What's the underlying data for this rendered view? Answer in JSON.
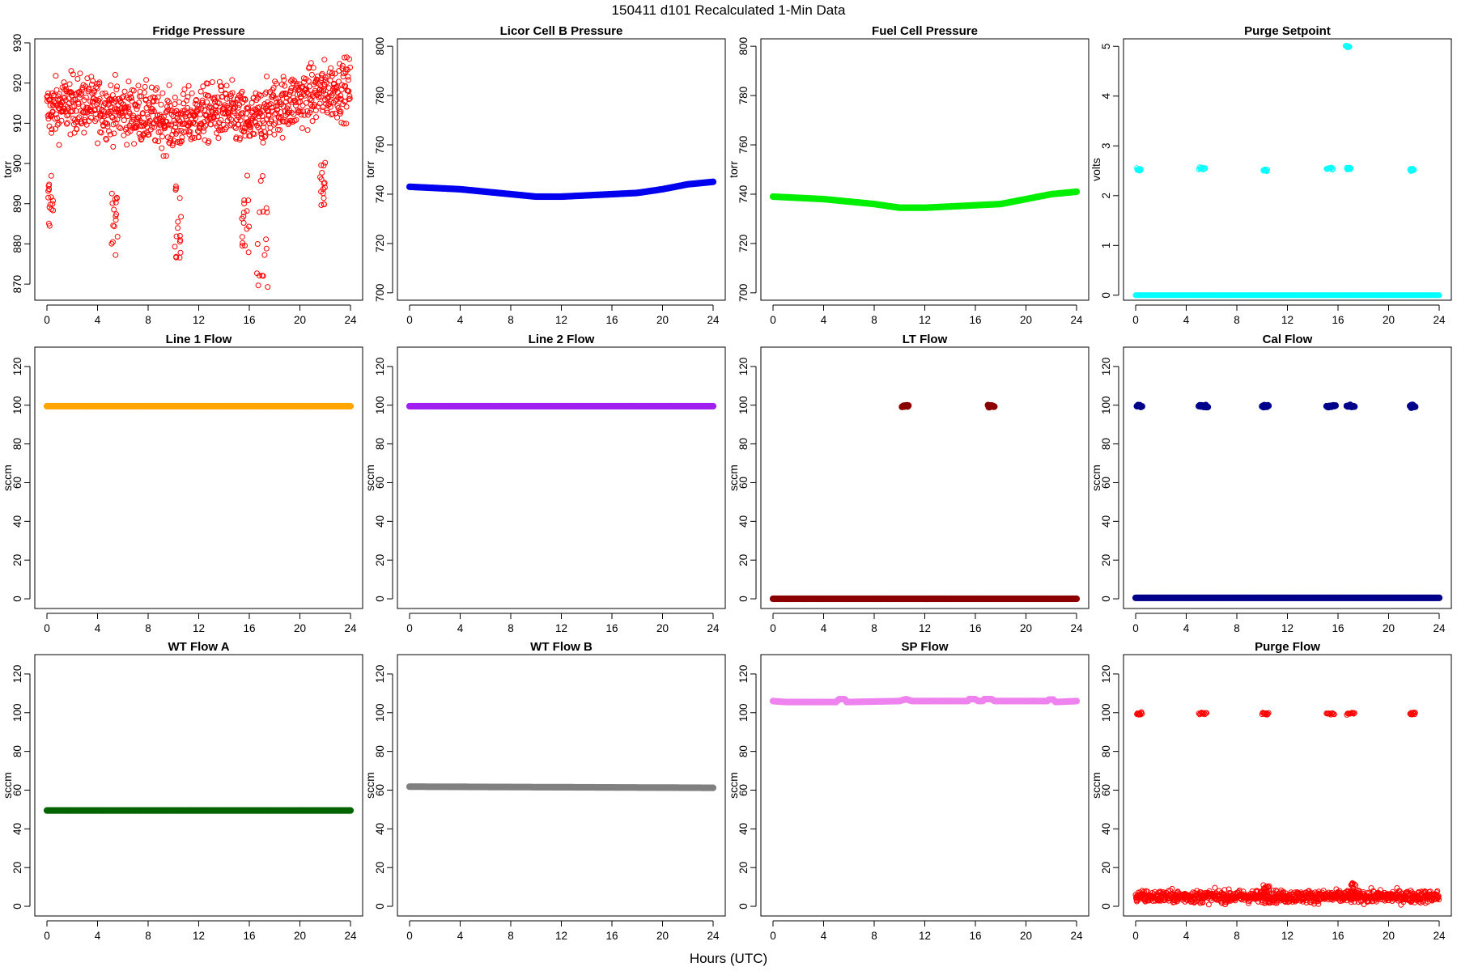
{
  "figure": {
    "title": "150411   d101   Recalculated 1-Min Data",
    "xlabel": "Hours (UTC)"
  },
  "chart_data": [
    {
      "type": "scatter",
      "title": "Fridge Pressure",
      "xlabel": "",
      "ylabel": "torr",
      "xlim": [
        0,
        24
      ],
      "ylim": [
        866,
        931
      ],
      "xticks": [
        0,
        4,
        8,
        12,
        16,
        20,
        24
      ],
      "yticks": [
        870,
        880,
        890,
        900,
        910,
        920,
        930
      ],
      "grid": false,
      "color": "#ff0000",
      "marker": "open-circle",
      "series": [
        {
          "kind": "noisy",
          "base": [
            [
              0,
              913
            ],
            [
              2,
              915
            ],
            [
              4,
              914
            ],
            [
              6,
              913
            ],
            [
              8,
              912
            ],
            [
              10,
              910
            ],
            [
              12,
              912
            ],
            [
              14,
              913
            ],
            [
              16,
              910
            ],
            [
              18,
              914
            ],
            [
              20,
              916
            ],
            [
              22,
              918
            ],
            [
              24,
              919
            ]
          ],
          "noise": 5,
          "dips": [
            {
              "x": [
                0.1,
                0.5
              ],
              "y": [
                884,
                898
              ]
            },
            {
              "x": [
                5.1,
                5.6
              ],
              "y": [
                877,
                893
              ]
            },
            {
              "x": [
                10.1,
                10.6
              ],
              "y": [
                876,
                895
              ]
            },
            {
              "x": [
                15.4,
                16.0
              ],
              "y": [
                877,
                897
              ]
            },
            {
              "x": [
                16.6,
                17.5
              ],
              "y": [
                866,
                897
              ]
            },
            {
              "x": [
                21.6,
                22.0
              ],
              "y": [
                888,
                901
              ]
            }
          ]
        }
      ]
    },
    {
      "type": "scatter",
      "title": "Licor Cell B Pressure",
      "ylabel": "torr",
      "xlim": [
        0,
        24
      ],
      "ylim": [
        697,
        803
      ],
      "xticks": [
        0,
        4,
        8,
        12,
        16,
        20,
        24
      ],
      "yticks": [
        700,
        720,
        740,
        760,
        780,
        800
      ],
      "color": "#0000ee",
      "marker": "circle",
      "series": [
        {
          "kind": "line",
          "points": [
            [
              0,
              743
            ],
            [
              4,
              742
            ],
            [
              8,
              740
            ],
            [
              10,
              739
            ],
            [
              12,
              739
            ],
            [
              16,
              740
            ],
            [
              18,
              740.5
            ],
            [
              20,
              742
            ],
            [
              22,
              744
            ],
            [
              24,
              745
            ]
          ]
        }
      ]
    },
    {
      "type": "scatter",
      "title": "Fuel Cell Pressure",
      "ylabel": "torr",
      "xlim": [
        0,
        24
      ],
      "ylim": [
        697,
        803
      ],
      "xticks": [
        0,
        4,
        8,
        12,
        16,
        20,
        24
      ],
      "yticks": [
        700,
        720,
        740,
        760,
        780,
        800
      ],
      "color": "#00ee00",
      "marker": "circle",
      "series": [
        {
          "kind": "line",
          "points": [
            [
              0,
              739
            ],
            [
              4,
              738
            ],
            [
              8,
              736
            ],
            [
              10,
              734.5
            ],
            [
              12,
              734.5
            ],
            [
              16,
              735.5
            ],
            [
              18,
              736
            ],
            [
              20,
              738
            ],
            [
              22,
              740
            ],
            [
              24,
              741
            ]
          ]
        }
      ]
    },
    {
      "type": "scatter",
      "title": "Purge Setpoint",
      "ylabel": "volts",
      "xlim": [
        0,
        24
      ],
      "ylim": [
        -0.1,
        5.15
      ],
      "xticks": [
        0,
        4,
        8,
        12,
        16,
        20,
        24
      ],
      "yticks": [
        0,
        1,
        2,
        3,
        4,
        5
      ],
      "color": "#00ffff",
      "marker": "open-circle",
      "series": [
        {
          "kind": "line",
          "points": [
            [
              0,
              0
            ],
            [
              24,
              0
            ]
          ]
        },
        {
          "kind": "clusters",
          "clusters": [
            {
              "x": [
                0.1,
                0.4
              ],
              "y": 2.52
            },
            {
              "x": [
                5.0,
                5.5
              ],
              "y": 2.55
            },
            {
              "x": [
                10.1,
                10.4
              ],
              "y": 2.52
            },
            {
              "x": [
                15.1,
                15.6
              ],
              "y": 2.55
            },
            {
              "x": [
                16.6,
                16.9
              ],
              "y": 5.0
            },
            {
              "x": [
                16.7,
                17.0
              ],
              "y": 2.55
            },
            {
              "x": [
                21.7,
                22.0
              ],
              "y": 2.52
            }
          ]
        }
      ]
    },
    {
      "type": "scatter",
      "title": "Line 1 Flow",
      "ylabel": "sccm",
      "xlim": [
        0,
        24
      ],
      "ylim": [
        -5,
        130
      ],
      "xticks": [
        0,
        4,
        8,
        12,
        16,
        20,
        24
      ],
      "yticks": [
        0,
        20,
        40,
        60,
        80,
        100,
        120
      ],
      "color": "#ffa500",
      "marker": "circle",
      "series": [
        {
          "kind": "line",
          "points": [
            [
              0,
              99.5
            ],
            [
              24,
              99.5
            ]
          ]
        }
      ]
    },
    {
      "type": "scatter",
      "title": "Line 2 Flow",
      "ylabel": "sccm",
      "xlim": [
        0,
        24
      ],
      "ylim": [
        -5,
        130
      ],
      "xticks": [
        0,
        4,
        8,
        12,
        16,
        20,
        24
      ],
      "yticks": [
        0,
        20,
        40,
        60,
        80,
        100,
        120
      ],
      "color": "#a020f0",
      "marker": "circle",
      "series": [
        {
          "kind": "line",
          "points": [
            [
              0,
              99.5
            ],
            [
              24,
              99.5
            ]
          ]
        }
      ]
    },
    {
      "type": "scatter",
      "title": "LT Flow",
      "ylabel": "sccm",
      "xlim": [
        0,
        24
      ],
      "ylim": [
        -5,
        130
      ],
      "xticks": [
        0,
        4,
        8,
        12,
        16,
        20,
        24
      ],
      "yticks": [
        0,
        20,
        40,
        60,
        80,
        100,
        120
      ],
      "color": "#8b0000",
      "marker": "circle",
      "series": [
        {
          "kind": "line",
          "points": [
            [
              0,
              0
            ],
            [
              24,
              0
            ]
          ]
        },
        {
          "kind": "clusters",
          "clusters": [
            {
              "x": [
                10.2,
                10.7
              ],
              "y": 99.5
            },
            {
              "x": [
                17.0,
                17.5
              ],
              "y": 99.5
            }
          ]
        }
      ]
    },
    {
      "type": "scatter",
      "title": "Cal Flow",
      "ylabel": "sccm",
      "xlim": [
        0,
        24
      ],
      "ylim": [
        -5,
        130
      ],
      "xticks": [
        0,
        4,
        8,
        12,
        16,
        20,
        24
      ],
      "yticks": [
        0,
        20,
        40,
        60,
        80,
        100,
        120
      ],
      "color": "#00008b",
      "marker": "circle",
      "series": [
        {
          "kind": "line",
          "points": [
            [
              0,
              0.5
            ],
            [
              24,
              0.5
            ]
          ]
        },
        {
          "kind": "clusters",
          "clusters": [
            {
              "x": [
                0.1,
                0.5
              ],
              "y": 99.5
            },
            {
              "x": [
                5.0,
                5.7
              ],
              "y": 99.5
            },
            {
              "x": [
                10.0,
                10.5
              ],
              "y": 99.5
            },
            {
              "x": [
                15.1,
                15.8
              ],
              "y": 99.5
            },
            {
              "x": [
                16.7,
                17.3
              ],
              "y": 99.5
            },
            {
              "x": [
                21.7,
                22.1
              ],
              "y": 99.5
            }
          ]
        }
      ]
    },
    {
      "type": "scatter",
      "title": "WT Flow A",
      "ylabel": "sccm",
      "xlim": [
        0,
        24
      ],
      "ylim": [
        -5,
        130
      ],
      "xticks": [
        0,
        4,
        8,
        12,
        16,
        20,
        24
      ],
      "yticks": [
        0,
        20,
        40,
        60,
        80,
        100,
        120
      ],
      "color": "#006400",
      "marker": "circle",
      "series": [
        {
          "kind": "line",
          "points": [
            [
              0,
              49.5
            ],
            [
              24,
              49.5
            ]
          ]
        }
      ]
    },
    {
      "type": "scatter",
      "title": "WT Flow B",
      "ylabel": "sccm",
      "xlim": [
        0,
        24
      ],
      "ylim": [
        -5,
        130
      ],
      "xticks": [
        0,
        4,
        8,
        12,
        16,
        20,
        24
      ],
      "yticks": [
        0,
        20,
        40,
        60,
        80,
        100,
        120
      ],
      "color": "#808080",
      "marker": "circle",
      "series": [
        {
          "kind": "line",
          "points": [
            [
              0,
              61.8
            ],
            [
              12,
              61.5
            ],
            [
              24,
              61.2
            ]
          ]
        }
      ]
    },
    {
      "type": "scatter",
      "title": "SP Flow",
      "ylabel": "sccm",
      "xlim": [
        0,
        24
      ],
      "ylim": [
        -5,
        130
      ],
      "xticks": [
        0,
        4,
        8,
        12,
        16,
        20,
        24
      ],
      "yticks": [
        0,
        20,
        40,
        60,
        80,
        100,
        120
      ],
      "color": "#ee82ee",
      "marker": "circle",
      "series": [
        {
          "kind": "line",
          "points": [
            [
              0,
              106
            ],
            [
              1,
              105.5
            ],
            [
              5,
              105.5
            ],
            [
              5.2,
              107
            ],
            [
              5.7,
              107
            ],
            [
              5.8,
              105.5
            ],
            [
              10,
              106
            ],
            [
              10.5,
              107
            ],
            [
              11,
              106
            ],
            [
              15.4,
              106
            ],
            [
              15.5,
              107
            ],
            [
              16,
              107
            ],
            [
              16.2,
              106
            ],
            [
              16.6,
              106
            ],
            [
              16.7,
              107
            ],
            [
              17.3,
              107
            ],
            [
              17.5,
              106
            ],
            [
              21.7,
              106
            ],
            [
              21.8,
              106.8
            ],
            [
              22.2,
              106.8
            ],
            [
              22.3,
              105.5
            ],
            [
              24,
              106
            ]
          ]
        }
      ]
    },
    {
      "type": "scatter",
      "title": "Purge Flow",
      "ylabel": "sccm",
      "xlim": [
        0,
        24
      ],
      "ylim": [
        -5,
        130
      ],
      "xticks": [
        0,
        4,
        8,
        12,
        16,
        20,
        24
      ],
      "yticks": [
        0,
        20,
        40,
        60,
        80,
        100,
        120
      ],
      "color": "#ff0000",
      "marker": "open-circle",
      "series": [
        {
          "kind": "noisy",
          "base": [
            [
              0,
              5
            ],
            [
              24,
              5
            ]
          ],
          "noise": 2.2,
          "dips": [
            {
              "x": [
                10.1,
                10.6
              ],
              "y": [
                6,
                11
              ]
            },
            {
              "x": [
                16.9,
                17.4
              ],
              "y": [
                6,
                12
              ]
            }
          ]
        },
        {
          "kind": "clusters",
          "clusters": [
            {
              "x": [
                0.1,
                0.5
              ],
              "y": 99.5
            },
            {
              "x": [
                5.0,
                5.6
              ],
              "y": 99.5
            },
            {
              "x": [
                10.0,
                10.5
              ],
              "y": 99.5
            },
            {
              "x": [
                15.1,
                15.7
              ],
              "y": 99.5
            },
            {
              "x": [
                16.7,
                17.3
              ],
              "y": 99.5
            },
            {
              "x": [
                21.7,
                22.1
              ],
              "y": 99.5
            }
          ]
        }
      ]
    }
  ]
}
